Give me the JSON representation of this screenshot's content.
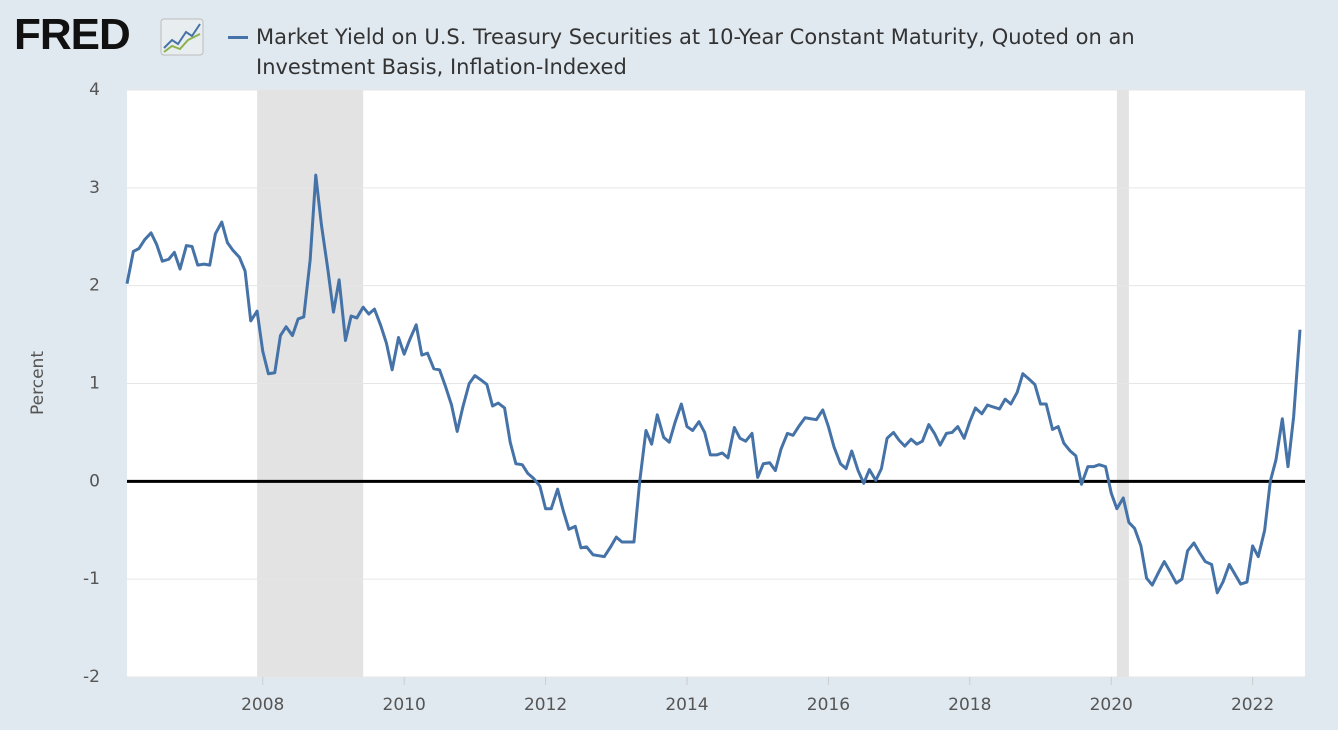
{
  "logo": "FRED",
  "chart_data": {
    "type": "line",
    "ylabel": "Percent",
    "xlim": [
      2006.08,
      2022.67
    ],
    "xticks": [
      2008,
      2010,
      2012,
      2014,
      2016,
      2018,
      2020,
      2022
    ],
    "ylim": [
      -2,
      4
    ],
    "yticks": [
      -2,
      -1,
      0,
      1,
      2,
      3,
      4
    ],
    "grid": true,
    "zero_line": true,
    "shaded_ranges": [
      [
        2007.92,
        2009.42
      ],
      [
        2020.08,
        2020.25
      ]
    ],
    "x": [
      2006.08,
      2006.17,
      2006.25,
      2006.33,
      2006.42,
      2006.5,
      2006.58,
      2006.67,
      2006.75,
      2006.83,
      2006.92,
      2007,
      2007.08,
      2007.17,
      2007.25,
      2007.33,
      2007.42,
      2007.5,
      2007.58,
      2007.67,
      2007.75,
      2007.83,
      2007.92,
      2008,
      2008.08,
      2008.17,
      2008.25,
      2008.33,
      2008.42,
      2008.5,
      2008.58,
      2008.67,
      2008.75,
      2008.83,
      2008.92,
      2009,
      2009.08,
      2009.17,
      2009.25,
      2009.33,
      2009.42,
      2009.5,
      2009.58,
      2009.67,
      2009.75,
      2009.83,
      2009.92,
      2010,
      2010.08,
      2010.17,
      2010.25,
      2010.33,
      2010.42,
      2010.5,
      2010.58,
      2010.67,
      2010.75,
      2010.83,
      2010.92,
      2011,
      2011.08,
      2011.17,
      2011.25,
      2011.33,
      2011.42,
      2011.5,
      2011.58,
      2011.67,
      2011.75,
      2011.83,
      2011.92,
      2012,
      2012.08,
      2012.17,
      2012.25,
      2012.33,
      2012.42,
      2012.5,
      2012.58,
      2012.67,
      2012.75,
      2012.83,
      2012.92,
      2013,
      2013.08,
      2013.17,
      2013.25,
      2013.33,
      2013.42,
      2013.5,
      2013.58,
      2013.67,
      2013.75,
      2013.83,
      2013.92,
      2014,
      2014.08,
      2014.17,
      2014.25,
      2014.33,
      2014.42,
      2014.5,
      2014.58,
      2014.67,
      2014.75,
      2014.83,
      2014.92,
      2015,
      2015.08,
      2015.17,
      2015.25,
      2015.33,
      2015.42,
      2015.5,
      2015.58,
      2015.67,
      2015.75,
      2015.83,
      2015.92,
      2016,
      2016.08,
      2016.17,
      2016.25,
      2016.33,
      2016.42,
      2016.5,
      2016.58,
      2016.67,
      2016.75,
      2016.83,
      2016.92,
      2017,
      2017.08,
      2017.17,
      2017.25,
      2017.33,
      2017.42,
      2017.5,
      2017.58,
      2017.67,
      2017.75,
      2017.83,
      2017.92,
      2018,
      2018.08,
      2018.17,
      2018.25,
      2018.33,
      2018.42,
      2018.5,
      2018.58,
      2018.67,
      2018.75,
      2018.83,
      2018.92,
      2019,
      2019.08,
      2019.17,
      2019.25,
      2019.33,
      2019.42,
      2019.5,
      2019.58,
      2019.67,
      2019.75,
      2019.83,
      2019.92,
      2020,
      2020.08,
      2020.17,
      2020.25,
      2020.33,
      2020.42,
      2020.5,
      2020.58,
      2020.67,
      2020.75,
      2020.83,
      2020.92,
      2021,
      2021.08,
      2021.17,
      2021.25,
      2021.33,
      2021.42,
      2021.5,
      2021.58,
      2021.67,
      2021.75,
      2021.83,
      2021.92,
      2022,
      2022.08,
      2022.17,
      2022.25,
      2022.33,
      2022.42,
      2022.5,
      2022.58,
      2022.67
    ],
    "series": [
      {
        "name": "Market Yield on U.S. Treasury Securities at 10-Year Constant Maturity, Quoted on an Investment Basis, Inflation-Indexed",
        "color": "#4572a7",
        "values": [
          2.02,
          2.35,
          2.38,
          2.47,
          2.54,
          2.42,
          2.25,
          2.27,
          2.34,
          2.17,
          2.41,
          2.4,
          2.21,
          2.22,
          2.21,
          2.53,
          2.65,
          2.44,
          2.36,
          2.29,
          2.15,
          1.64,
          1.74,
          1.33,
          1.1,
          1.11,
          1.49,
          1.58,
          1.49,
          1.66,
          1.68,
          2.26,
          3.13,
          2.62,
          2.17,
          1.73,
          2.06,
          1.44,
          1.69,
          1.67,
          1.78,
          1.71,
          1.76,
          1.59,
          1.41,
          1.14,
          1.47,
          1.3,
          1.45,
          1.6,
          1.29,
          1.31,
          1.15,
          1.14,
          0.98,
          0.78,
          0.51,
          0.76,
          1.0,
          1.08,
          1.04,
          0.99,
          0.77,
          0.8,
          0.75,
          0.4,
          0.18,
          0.17,
          0.08,
          0.03,
          -0.05,
          -0.28,
          -0.28,
          -0.08,
          -0.3,
          -0.49,
          -0.46,
          -0.68,
          -0.67,
          -0.75,
          -0.76,
          -0.77,
          -0.67,
          -0.57,
          -0.62,
          -0.62,
          -0.62,
          -0.01,
          0.52,
          0.38,
          0.68,
          0.45,
          0.4,
          0.6,
          0.79,
          0.56,
          0.52,
          0.61,
          0.5,
          0.27,
          0.27,
          0.29,
          0.24,
          0.55,
          0.44,
          0.41,
          0.49,
          0.04,
          0.18,
          0.19,
          0.11,
          0.33,
          0.49,
          0.47,
          0.56,
          0.65,
          0.64,
          0.63,
          0.73,
          0.56,
          0.35,
          0.18,
          0.13,
          0.31,
          0.11,
          -0.02,
          0.12,
          0.01,
          0.13,
          0.44,
          0.5,
          0.42,
          0.36,
          0.43,
          0.38,
          0.41,
          0.58,
          0.49,
          0.37,
          0.49,
          0.5,
          0.56,
          0.44,
          0.61,
          0.75,
          0.69,
          0.78,
          0.76,
          0.74,
          0.84,
          0.79,
          0.91,
          1.1,
          1.05,
          0.99,
          0.79,
          0.79,
          0.53,
          0.56,
          0.39,
          0.31,
          0.26,
          -0.03,
          0.15,
          0.15,
          0.17,
          0.15,
          -0.12,
          -0.28,
          -0.17,
          -0.42,
          -0.48,
          -0.66,
          -0.99,
          -1.06,
          -0.93,
          -0.82,
          -0.92,
          -1.04,
          -1.0,
          -0.71,
          -0.63,
          -0.73,
          -0.82,
          -0.85,
          -1.14,
          -1.03,
          -0.85,
          -0.95,
          -1.05,
          -1.03,
          -0.66,
          -0.77,
          -0.5,
          0.0,
          0.22,
          0.64,
          0.15,
          0.66,
          1.55
        ]
      }
    ]
  }
}
